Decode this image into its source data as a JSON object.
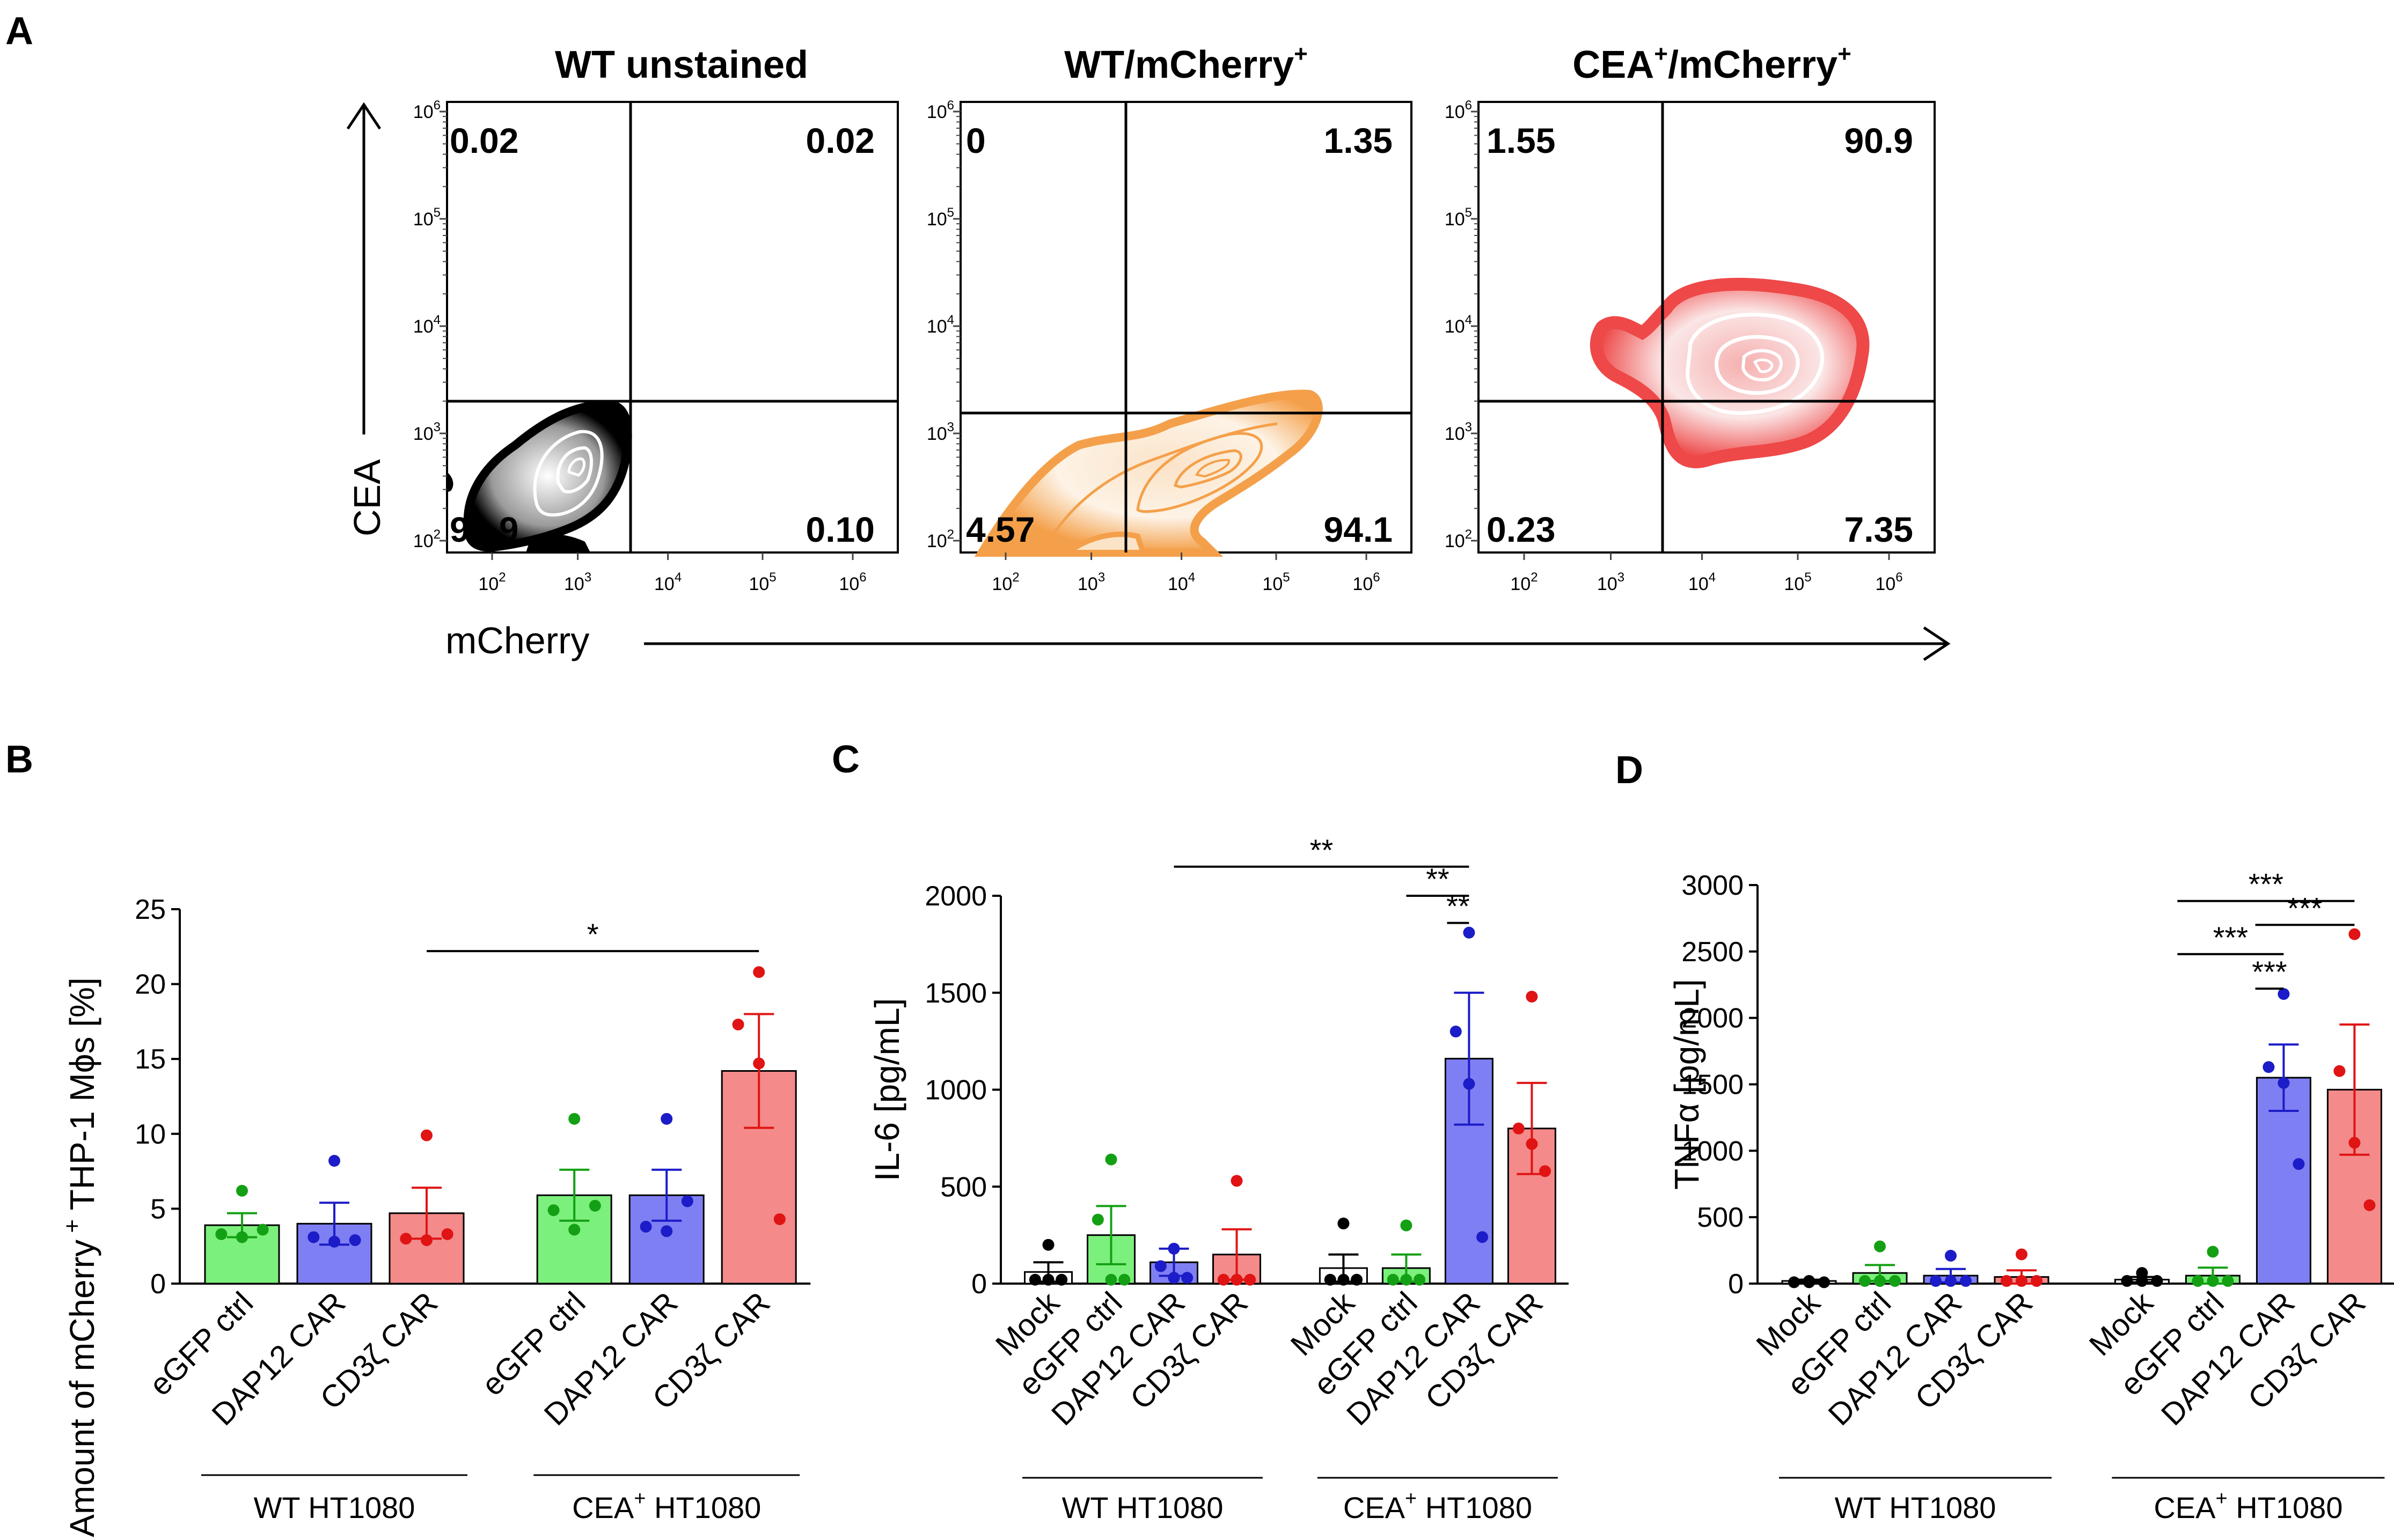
{
  "colors": {
    "black": "#000000",
    "green": "#7cf07c",
    "blue": "#7f7ff4",
    "red": "#f48a8a",
    "green_dot": "#14a014",
    "blue_dot": "#1c1cc8",
    "red_dot": "#e01414",
    "black_dot": "#000000",
    "mock_fill": "#ffffff",
    "flow_black": "#000000",
    "flow_orange": "#f4a04a",
    "flow_red": "#ee4848"
  },
  "panel_A": {
    "label": "A",
    "y_axis_label": "CEA",
    "x_axis_label": "mCherry",
    "tick_labels": [
      "10",
      "10",
      "10",
      "10",
      "10"
    ],
    "tick_exponents": [
      "2",
      "3",
      "4",
      "5",
      "6"
    ],
    "subplots": [
      {
        "title": "WT unstained",
        "title_sup": "",
        "title_sup2": "",
        "q_ul": "0.02",
        "q_ur": "0.02",
        "q_ll": "99.9",
        "q_lr": "0.10",
        "color": "#000000"
      },
      {
        "title": "WT/mCherry",
        "title_sup": "+",
        "title_sup2": "",
        "q_ul": "0",
        "q_ur": "1.35",
        "q_ll": "4.57",
        "q_lr": "94.1",
        "color": "#f4a04a"
      },
      {
        "title": "CEA",
        "title_sup": "+",
        "title_mid": "/mCherry",
        "title_sup2": "+",
        "q_ul": "1.55",
        "q_ur": "90.9",
        "q_ll": "0.23",
        "q_lr": "7.35",
        "color": "#ee4848"
      }
    ]
  },
  "chart_data": [
    {
      "panel": "B",
      "type": "bar",
      "ylabel": "Amount of mCherry",
      "ylabel_sup": "+",
      "ylabel_rest": " THP-1 Mϕs [%]",
      "ylim": [
        0,
        25
      ],
      "yticks": [
        0,
        5,
        10,
        15,
        20,
        25
      ],
      "categories": [
        "eGFP ctrl",
        "DAP12 CAR",
        "CD3ζ CAR",
        "eGFP ctrl",
        "DAP12 CAR",
        "CD3ζ CAR"
      ],
      "means": [
        3.9,
        4.0,
        4.7,
        5.9,
        5.9,
        14.2
      ],
      "sem": [
        0.8,
        1.4,
        1.7,
        1.7,
        1.7,
        3.8
      ],
      "points": [
        [
          6.2,
          3.3,
          3.1,
          3.6
        ],
        [
          8.2,
          3.1,
          2.8,
          2.9
        ],
        [
          9.9,
          3.0,
          2.9,
          3.3
        ],
        [
          11.0,
          4.9,
          3.6,
          5.2
        ],
        [
          11.0,
          3.8,
          3.5,
          5.5
        ],
        [
          20.8,
          17.3,
          14.7,
          4.3
        ]
      ],
      "groups": [
        {
          "name": "WT HT1080",
          "sup": ""
        },
        {
          "name": "CEA",
          "sup": "+",
          "rest": " HT1080"
        }
      ],
      "significance": [
        {
          "from": 2,
          "to": 5,
          "label": "*",
          "y": 22.2
        }
      ]
    },
    {
      "panel": "C",
      "type": "bar",
      "ylabel": "IL-6 [pg/mL]",
      "ylim": [
        0,
        2000
      ],
      "yticks": [
        0,
        500,
        1000,
        1500,
        2000
      ],
      "categories": [
        "Mock",
        "eGFP ctrl",
        "DAP12 CAR",
        "CD3ζ CAR",
        "Mock",
        "eGFP ctrl",
        "DAP12 CAR",
        "CD3ζ CAR"
      ],
      "means": [
        60,
        250,
        110,
        150,
        80,
        80,
        1160,
        800
      ],
      "sem": [
        50,
        150,
        70,
        130,
        70,
        70,
        340,
        235
      ],
      "points": [
        [
          200,
          20,
          20,
          20
        ],
        [
          640,
          330,
          20,
          20
        ],
        [
          180,
          90,
          30,
          30
        ],
        [
          530,
          20,
          20,
          20
        ],
        [
          310,
          20,
          20,
          20
        ],
        [
          300,
          20,
          20,
          20
        ],
        [
          1810,
          1300,
          1030,
          240
        ],
        [
          1480,
          800,
          720,
          580
        ]
      ],
      "groups": [
        {
          "name": "WT HT1080",
          "sup": ""
        },
        {
          "name": "CEA",
          "sup": "+",
          "rest": " HT1080"
        }
      ],
      "significance": [
        {
          "from": 2,
          "to": 6,
          "label": "**",
          "y": 2150
        },
        {
          "from": 5,
          "to": 6,
          "label": "**",
          "y": 2000
        },
        {
          "from": 5.65,
          "to": 6,
          "label": "**",
          "y": 1860
        }
      ]
    },
    {
      "panel": "D",
      "type": "bar",
      "ylabel": "TNFα [pg/mL]",
      "ylim": [
        0,
        3000
      ],
      "yticks": [
        0,
        500,
        1000,
        1500,
        2000,
        2500,
        3000
      ],
      "categories": [
        "Mock",
        "eGFP ctrl",
        "DAP12 CAR",
        "CD3ζ CAR",
        "Mock",
        "eGFP ctrl",
        "DAP12 CAR",
        "CD3ζ CAR"
      ],
      "means": [
        20,
        80,
        60,
        50,
        30,
        60,
        1550,
        1460
      ],
      "sem": [
        10,
        60,
        50,
        50,
        20,
        60,
        250,
        490
      ],
      "points": [
        [
          20,
          10,
          10,
          10
        ],
        [
          280,
          20,
          20,
          20
        ],
        [
          210,
          20,
          20,
          20
        ],
        [
          220,
          20,
          20,
          20
        ],
        [
          80,
          20,
          20,
          20
        ],
        [
          240,
          20,
          20,
          20
        ],
        [
          2180,
          1630,
          1510,
          900
        ],
        [
          2630,
          1600,
          1060,
          590
        ]
      ],
      "groups": [
        {
          "name": "WT HT1080",
          "sup": ""
        },
        {
          "name": "CEA",
          "sup": "+",
          "rest": " HT1080"
        }
      ],
      "significance": [
        {
          "from": 4.5,
          "to": 7,
          "label": "***",
          "y": 2880
        },
        {
          "from": 5.6,
          "to": 7,
          "label": "***",
          "y": 2700
        },
        {
          "from": 4.5,
          "to": 6,
          "label": "***",
          "y": 2480
        },
        {
          "from": 5.6,
          "to": 6,
          "label": "***",
          "y": 2220
        }
      ]
    }
  ]
}
